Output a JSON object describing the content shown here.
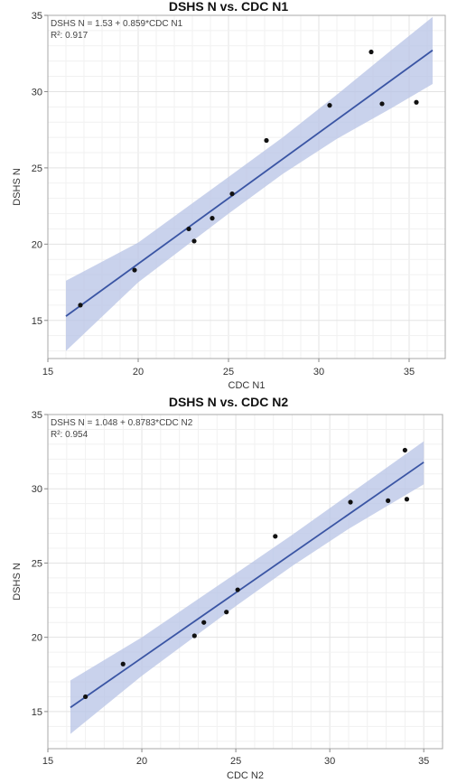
{
  "chart_data": [
    {
      "type": "scatter",
      "title": "DSHS N vs. CDC N1",
      "xlabel": "CDC N1",
      "ylabel": "DSHS N",
      "equation": "DSHS N = 1.53 + 0.859*CDC N1",
      "r2_label": "R²: 0.917",
      "xlim": [
        15,
        37
      ],
      "ylim": [
        12.5,
        35
      ],
      "xticks": [
        15,
        20,
        25,
        30,
        35
      ],
      "yticks": [
        15,
        20,
        25,
        30,
        35
      ],
      "fit": {
        "intercept": 1.53,
        "slope": 0.859,
        "x_range": [
          16,
          36.3
        ]
      },
      "band": {
        "x": [
          16,
          20,
          25,
          28,
          31,
          34,
          36.3
        ],
        "lower": [
          13.0,
          17.5,
          22.0,
          24.6,
          26.9,
          28.9,
          30.5
        ],
        "upper": [
          17.6,
          20.1,
          24.4,
          27.0,
          29.8,
          32.7,
          34.9
        ]
      },
      "points": [
        {
          "x": 16.8,
          "y": 16.0
        },
        {
          "x": 19.8,
          "y": 18.3
        },
        {
          "x": 22.8,
          "y": 21.0
        },
        {
          "x": 23.1,
          "y": 20.2
        },
        {
          "x": 24.1,
          "y": 21.7
        },
        {
          "x": 25.2,
          "y": 23.3
        },
        {
          "x": 27.1,
          "y": 26.8
        },
        {
          "x": 30.6,
          "y": 29.1
        },
        {
          "x": 32.9,
          "y": 32.6
        },
        {
          "x": 33.5,
          "y": 29.2
        },
        {
          "x": 35.4,
          "y": 29.3
        }
      ]
    },
    {
      "type": "scatter",
      "title": "DSHS N vs. CDC N2",
      "xlabel": "CDC N2",
      "ylabel": "DSHS N",
      "equation": "DSHS N = 1.048 + 0.8783*CDC N2",
      "r2_label": "R²: 0.954",
      "xlim": [
        15,
        36
      ],
      "ylim": [
        12.5,
        35
      ],
      "xticks": [
        15,
        20,
        25,
        30,
        35
      ],
      "yticks": [
        15,
        20,
        25,
        30,
        35
      ],
      "fit": {
        "intercept": 1.048,
        "slope": 0.8783,
        "x_range": [
          16.2,
          35
        ]
      },
      "band": {
        "x": [
          16.2,
          20,
          25,
          28,
          31,
          35
        ],
        "lower": [
          13.5,
          17.4,
          22.1,
          24.8,
          27.3,
          30.3
        ],
        "upper": [
          17.1,
          20.0,
          24.3,
          26.9,
          29.6,
          33.2
        ]
      },
      "points": [
        {
          "x": 17.0,
          "y": 16.0
        },
        {
          "x": 19.0,
          "y": 18.2
        },
        {
          "x": 22.8,
          "y": 20.1
        },
        {
          "x": 23.3,
          "y": 21.0
        },
        {
          "x": 24.5,
          "y": 21.7
        },
        {
          "x": 25.1,
          "y": 23.2
        },
        {
          "x": 27.1,
          "y": 26.8
        },
        {
          "x": 31.1,
          "y": 29.1
        },
        {
          "x": 33.1,
          "y": 29.2
        },
        {
          "x": 34.0,
          "y": 32.6
        },
        {
          "x": 34.1,
          "y": 29.3
        }
      ]
    }
  ],
  "colors": {
    "fit_line": "#3a55a4",
    "band_fill": "#b7c3e6",
    "points": "#111111"
  }
}
